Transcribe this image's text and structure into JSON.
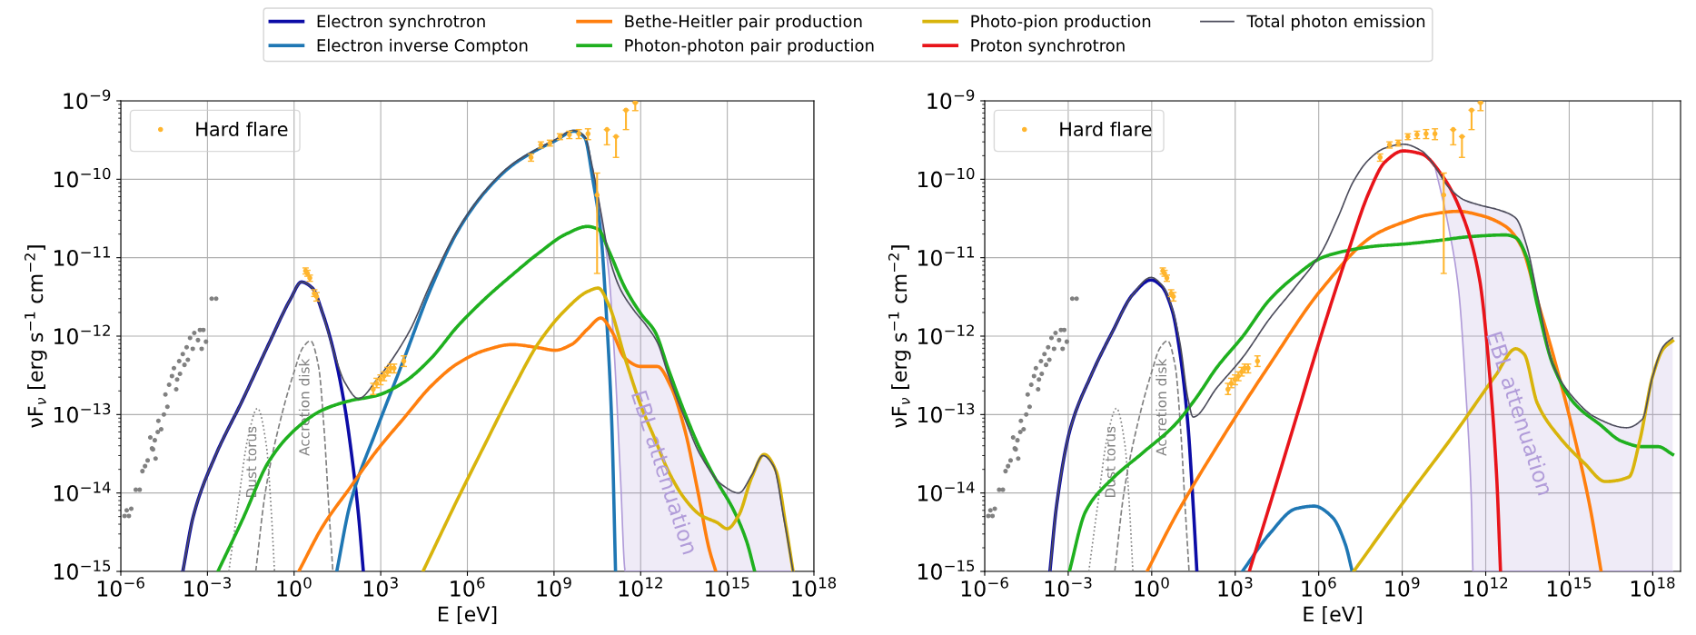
{
  "chart_data": [
    {
      "type": "line",
      "xlabel": "E [eV]",
      "ylabel": "νF$_{ν}$ [erg s$^{−1}$ cm$^{−2}$]",
      "log": "xy",
      "grid": true,
      "legend": "top",
      "xlim": [
        1e-06,
        1e+18
      ],
      "ylim": [
        1e-15,
        1e-09
      ],
      "xticks": [
        {
          "value": 1e-06,
          "label": "10$^{−6}$"
        },
        {
          "value": 0.001,
          "label": "10$^{−3}$"
        },
        {
          "value": 1,
          "label": "10$^{0}$"
        },
        {
          "value": 1000.0,
          "label": "10$^{3}$"
        },
        {
          "value": 1000000.0,
          "label": "10$^{6}$"
        },
        {
          "value": 1000000000.0,
          "label": "10$^{9}$"
        },
        {
          "value": 1000000000000.0,
          "label": "10$^{12}$"
        },
        {
          "value": 1000000000000000.0,
          "label": "10$^{15}$"
        },
        {
          "value": 1e+18,
          "label": "10$^{18}$"
        }
      ],
      "yticks": [
        {
          "value": 1e-15,
          "label": "10$^{−15}$"
        },
        {
          "value": 1e-14,
          "label": "10$^{−14}$"
        },
        {
          "value": 1e-13,
          "label": "10$^{−13}$"
        },
        {
          "value": 1e-12,
          "label": "10$^{−12}$"
        },
        {
          "value": 1e-11,
          "label": "10$^{−11}$"
        },
        {
          "value": 1e-10,
          "label": "10$^{−10}$"
        },
        {
          "value": 1e-09,
          "label": "10$^{−9}$"
        }
      ],
      "series": [
        {
          "type": "scatter",
          "marker": "circle",
          "color": "#808080",
          "x": [
            1.35e-06,
            1.6e-06,
            2.3e-06,
            1.9e-06,
            3.3e-06,
            4.5e-06,
            5.6e-06,
            8.5e-06,
            6.9e-06,
            1.3e-05,
            1.6e-05,
            1.05e-05,
            1.5e-05,
            1.2e-05,
            1.9e-05,
            2e-05,
            2.5e-05,
            3.1e-05,
            4.1e-05,
            3.5e-05,
            4.7e-05,
            5.9e-05,
            6.9e-05,
            8.9e-05,
            8.3e-05,
            0.000112,
            0.000105,
            0.00014,
            0.00016,
            0.00019,
            0.00021,
            0.00025,
            0.00031,
            0.00035,
            0.00047,
            0.00055,
            0.00072,
            0.00063,
            0.00089,
            0.0014,
            0.002
          ],
          "values": [
            5.1e-15,
            6e-15,
            6.3e-15,
            5.1e-15,
            1.1e-14,
            1.1e-14,
            1.9e-14,
            2.6e-14,
            2.2e-14,
            3.6e-14,
            2.75e-14,
            5.1e-14,
            4.7e-14,
            3.7e-14,
            6e-14,
            8.3e-14,
            6.5e-14,
            1e-13,
            1.26e-13,
            1.8e-13,
            2.4e-13,
            3.1e-13,
            3.9e-13,
            2.8e-13,
            2.1e-13,
            3.3e-13,
            4.8e-13,
            5.9e-13,
            4.3e-13,
            7.2e-13,
            5e-13,
            9.5e-13,
            6.9e-13,
            1.1e-12,
            8.9e-13,
            1.2e-12,
            1.2e-12,
            6.9e-13,
            8.5e-13,
            3e-12,
            3e-12
          ]
        },
        {
          "type": "line",
          "line_style": "dotted",
          "name": "Dust torus",
          "color": "#808080",
          "x": [
            0.0055,
            0.011,
            0.025,
            0.054,
            0.11,
            0.16,
            0.21
          ],
          "values": [
            1e-15,
            6.3e-15,
            5e-14,
            1.2e-13,
            4e-14,
            6.3e-15,
            1e-15
          ]
        },
        {
          "type": "line",
          "line_style": "dashed",
          "name": "Accretion disk",
          "color": "#808080",
          "x": [
            0.047,
            0.1,
            0.32,
            1,
            2.0,
            3.7,
            7.1,
            11,
            16,
            22
          ],
          "values": [
            1e-15,
            1e-14,
            7.9e-14,
            3.5e-13,
            7.1e-13,
            8.7e-13,
            4e-13,
            6.3e-14,
            6.3e-15,
            1e-15
          ]
        },
        {
          "type": "line",
          "name": "EBL attenuation",
          "color": "#b19cd9",
          "x": [
            22000000000.0,
            42000000000.0,
            79000000000.0,
            126000000000.0,
            200000000000.0,
            295000000000.0,
            1000000000000.0,
            10000000000000.0,
            100000000000000.0,
            1000000000000000.0,
            1e+16,
            1.9e+17
          ],
          "values": [
            1.35e-10,
            3.5e-11,
            6.3e-12,
            5e-13,
            1.6e-14,
            1e-15,
            1e-15,
            1e-15,
            1e-15,
            1e-15,
            1e-15,
            1e-15
          ]
        },
        {
          "type": "line",
          "name": "Electron synchrotron",
          "color": "#0c0ca6",
          "x": [
            0.00014,
            0.00033,
            0.0019,
            0.016,
            0.14,
            0.76,
            1.8,
            4.3,
            10,
            24,
            56,
            110,
            170,
            250
          ],
          "values": [
            1e-15,
            5.2e-15,
            3e-14,
            1.5e-13,
            8.3e-13,
            3e-12,
            4.9e-12,
            4.1e-12,
            1.9e-12,
            6.2e-13,
            1.3e-13,
            2.2e-14,
            5.2e-15,
            1e-15
          ]
        },
        {
          "type": "line",
          "name": "Electron inverse Compton",
          "color": "#1f77b4",
          "x": [
            30,
            87,
            740,
            6500,
            55000.0,
            470000.0,
            4100000.0,
            35000000.0,
            300000000.0,
            1100000000.0,
            4900000000.0,
            11500000000.0,
            22000000000.0,
            42000000000.0,
            65000000000.0,
            100000000000.0,
            135000000000.0
          ],
          "values": [
            1e-15,
            7.2e-15,
            6.6e-14,
            5.2e-13,
            4.1e-12,
            2.2e-11,
            6.9e-11,
            1.5e-10,
            2.45e-10,
            3.1e-10,
            4.1e-10,
            3.4e-10,
            1e-10,
            2e-11,
            1.9e-12,
            7.8e-14,
            1e-15
          ]
        },
        {
          "type": "line",
          "name": "Bethe-Heitler pair production",
          "color": "#ff7f0e",
          "x": [
            1.45,
            10,
            87,
            740,
            6500,
            55000.0,
            470000.0,
            4100000.0,
            35000000.0,
            300000000.0,
            1100000000.0,
            4000000000.0,
            14500000000.0,
            42000000000.0,
            100000000000.0,
            290000000000.0,
            1050000000000.0,
            3800000000000.0,
            11000000000000.0,
            33000000000000.0,
            98000000000000.0,
            230000000000000.0,
            400000000000000.0
          ],
          "values": [
            1e-15,
            3.8e-15,
            1.17e-14,
            3.5e-14,
            9.1e-14,
            2.3e-13,
            4.5e-13,
            6.6e-13,
            7.8e-13,
            7.1e-13,
            6.6e-13,
            7.8e-13,
            1.23e-12,
            1.7e-12,
            1.15e-12,
            5.2e-13,
            4.1e-13,
            4.1e-13,
            2.3e-13,
            6.6e-14,
            1e-14,
            2e-15,
            1e-15
          ]
        },
        {
          "type": "line",
          "name": "Photon-photon pair production",
          "color": "#1fb01f",
          "x": [
            0.0023,
            0.016,
            0.14,
            1.17,
            10,
            87,
            740,
            6500,
            55000.0,
            470000.0,
            4100000.0,
            35000000.0,
            300000000.0,
            2600000000.0,
            14500000000.0,
            34000000000.0,
            79000000000.0,
            290000000000.0,
            1050000000000.0,
            3100000000000.0,
            9100000000000.0,
            33000000000000.0,
            120000000000000.0,
            440000000000000.0,
            1600000000000000.0,
            4700000000000000.0,
            8900000000000000.0
          ],
          "values": [
            1e-15,
            4.5e-15,
            2.6e-14,
            6.6e-14,
            1.15e-13,
            1.5e-13,
            1.75e-13,
            2.6e-13,
            5.2e-13,
            1.35e-12,
            3e-12,
            6e-12,
            1.15e-11,
            2e-11,
            2.5e-11,
            2.3e-11,
            1.23e-11,
            4.1e-12,
            1.9e-12,
            1.15e-12,
            3.8e-13,
            1.07e-13,
            3.5e-14,
            1.4e-14,
            6.2e-15,
            2.4e-15,
            1e-15
          ]
        },
        {
          "type": "line",
          "name": "Photo-pion production",
          "color": "#d8b40c",
          "x": [
            29000.0,
            470000.0,
            4100000.0,
            35000000.0,
            300000000.0,
            2600000000.0,
            14500000000.0,
            34000000000.0,
            79000000000.0,
            290000000000.0,
            1050000000000.0,
            3100000000000.0,
            9100000000000.0,
            33000000000000.0,
            120000000000000.0,
            440000000000000.0,
            1000000000000000.0,
            2500000000000000.0,
            7100000000000000.0,
            1.9e+16,
            4.9e+16,
            1.07e+17,
            1.9e+17
          ],
          "values": [
            1e-15,
            8.5e-15,
            4.2e-14,
            2e-13,
            8.3e-13,
            2.2e-12,
            3.7e-12,
            4.1e-12,
            2.5e-12,
            5.2e-13,
            1.26e-13,
            4.9e-14,
            1.9e-14,
            8.5e-15,
            5.2e-15,
            4.2e-15,
            3.5e-15,
            5.2e-15,
            1.6e-14,
            3.1e-14,
            1.9e-14,
            3.8e-15,
            1e-15
          ]
        },
        {
          "type": "line",
          "name": "Total photon emission",
          "color": "#4d4d5c",
          "x": [
            0.00014,
            0.00033,
            0.0019,
            0.016,
            0.14,
            0.76,
            1.8,
            4.3,
            10,
            24,
            56,
            170,
            740,
            9800,
            55000.0,
            470000.0,
            4100000.0,
            35000000.0,
            300000000.0,
            1100000000.0,
            4900000000.0,
            11500000000.0,
            22000000000.0,
            42000000000.0,
            79000000000.0,
            190000000000.0,
            550000000000.0,
            1600000000000.0,
            3800000000000.0,
            9100000000000.0,
            33000000000000.0,
            120000000000000.0,
            680000000000000.0,
            2500000000000000.0,
            7100000000000000.0,
            1.7e+16,
            4e+16,
            9.3e+16,
            1.9e+17
          ],
          "values": [
            1e-15,
            5.2e-15,
            3e-14,
            1.5e-13,
            8.3e-13,
            3e-12,
            4.9e-12,
            4.1e-12,
            1.9e-12,
            6.2e-13,
            2.6e-13,
            1.6e-13,
            2.8e-13,
            1.15e-12,
            4.8e-12,
            2.3e-11,
            7.1e-11,
            1.55e-10,
            2.5e-10,
            3.2e-10,
            4.2e-10,
            3.5e-10,
            1.35e-10,
            3.8e-11,
            1.07e-11,
            4.1e-12,
            2.2e-12,
            1.35e-12,
            8.3e-13,
            3.2e-13,
            9.1e-14,
            3e-14,
            1.26e-14,
            1e-14,
            1.7e-14,
            3e-14,
            2.2e-14,
            4.5e-15,
            1e-15
          ]
        },
        {
          "type": "scatter",
          "marker": "circle",
          "name": "Hard flare",
          "color": "#ffb52e",
          "x": [
            2.5,
            2.9,
            3.5,
            5.0,
            6.0,
            550,
            720,
            980,
            1300,
            1700,
            2200,
            2900,
            6300,
            160000000.0,
            350000000.0,
            720000000.0,
            1600000000.0,
            3400000000.0,
            7200000000.0,
            15000000000.0,
            31000000000.0,
            68000000000.0,
            140000000000.0,
            310000000000.0,
            650000000000.0
          ],
          "values": [
            6.8e-12,
            6.3e-12,
            5.5e-12,
            3.5e-12,
            3.2e-12,
            2.1e-13,
            2.5e-13,
            2.8e-13,
            3.1e-13,
            3.5e-13,
            3.9e-13,
            3.9e-13,
            4.8e-13,
            1.9e-10,
            2.75e-10,
            2.9e-10,
            3.5e-10,
            3.7e-10,
            3.8e-10,
            3.8e-10,
            6.3e-11,
            4.3e-10,
            3.5e-10,
            7.6e-10,
            9.5e-10
          ],
          "errors": [
            [
              6.2e-12,
              7.4e-12
            ],
            [
              5.8e-12,
              6.9e-12
            ],
            [
              5e-12,
              6e-12
            ],
            [
              3.2e-12,
              3.9e-12
            ],
            [
              2.8e-12,
              3.6e-12
            ],
            [
              1.8e-13,
              2.5e-13
            ],
            [
              2.2e-13,
              2.9e-13
            ],
            [
              2.4e-13,
              3.2e-13
            ],
            [
              2.7e-13,
              3.5e-13
            ],
            [
              3.1e-13,
              4e-13
            ],
            [
              3.4e-13,
              4.4e-13
            ],
            [
              3.4e-13,
              4.4e-13
            ],
            [
              4.1e-13,
              5.6e-13
            ],
            [
              1.7e-10,
              2.1e-10
            ],
            [
              2.5e-10,
              3e-10
            ],
            [
              2.65e-10,
              3.15e-10
            ],
            [
              3.2e-10,
              3.8e-10
            ],
            [
              3.3e-10,
              4.1e-10
            ],
            [
              3.3e-10,
              4.3e-10
            ],
            [
              3.2e-10,
              4.4e-10
            ],
            [
              6.3e-12,
              1.2e-10
            ],
            [
              2.75e-10,
              4.3e-10
            ],
            [
              1.9e-10,
              3.5e-10
            ],
            [
              4.3e-10,
              7.6e-10
            ],
            [
              7.5e-10,
              9.5e-10
            ]
          ]
        }
      ]
    },
    {
      "type": "line",
      "xlabel": "E [eV]",
      "ylabel": "νF$_{ν}$ [erg s$^{−1}$ cm$^{−2}$]",
      "log": "xy",
      "grid": true,
      "legend": "top",
      "xlim": [
        1e-06,
        1e+19
      ],
      "ylim": [
        1e-15,
        1e-09
      ],
      "xticks": [
        {
          "value": 1e-06,
          "label": "10$^{−6}$"
        },
        {
          "value": 0.001,
          "label": "10$^{−3}$"
        },
        {
          "value": 1,
          "label": "10$^{0}$"
        },
        {
          "value": 1000.0,
          "label": "10$^{3}$"
        },
        {
          "value": 1000000.0,
          "label": "10$^{6}$"
        },
        {
          "value": 1000000000.0,
          "label": "10$^{9}$"
        },
        {
          "value": 1000000000000.0,
          "label": "10$^{12}$"
        },
        {
          "value": 1000000000000000.0,
          "label": "10$^{15}$"
        },
        {
          "value": 1e+18,
          "label": "10$^{18}$"
        }
      ],
      "yticks": [
        {
          "value": 1e-15,
          "label": "10$^{−15}$"
        },
        {
          "value": 1e-14,
          "label": "10$^{−14}$"
        },
        {
          "value": 1e-13,
          "label": "10$^{−13}$"
        },
        {
          "value": 1e-12,
          "label": "10$^{−12}$"
        },
        {
          "value": 1e-11,
          "label": "10$^{−11}$"
        },
        {
          "value": 1e-10,
          "label": "10$^{−10}$"
        },
        {
          "value": 1e-09,
          "label": "10$^{−9}$"
        }
      ],
      "series": [
        {
          "type": "scatter",
          "marker": "circle",
          "color": "#808080",
          "x": [
            1.35e-06,
            1.6e-06,
            2.3e-06,
            1.9e-06,
            3.3e-06,
            4.5e-06,
            5.6e-06,
            8.5e-06,
            6.9e-06,
            1.3e-05,
            1.6e-05,
            1.05e-05,
            1.5e-05,
            1.2e-05,
            1.9e-05,
            2e-05,
            2.5e-05,
            3.1e-05,
            4.1e-05,
            3.5e-05,
            4.7e-05,
            5.9e-05,
            6.9e-05,
            8.9e-05,
            8.3e-05,
            0.000112,
            0.000105,
            0.00014,
            0.00016,
            0.00019,
            0.00021,
            0.00025,
            0.00031,
            0.00035,
            0.00047,
            0.00055,
            0.00072,
            0.00063,
            0.00089,
            0.0014,
            0.002
          ],
          "values": [
            5.1e-15,
            6e-15,
            6.3e-15,
            5.1e-15,
            1.1e-14,
            1.1e-14,
            1.9e-14,
            2.6e-14,
            2.2e-14,
            3.6e-14,
            2.75e-14,
            5.1e-14,
            4.7e-14,
            3.7e-14,
            6e-14,
            8.3e-14,
            6.5e-14,
            1e-13,
            1.26e-13,
            1.8e-13,
            2.4e-13,
            3.1e-13,
            3.9e-13,
            2.8e-13,
            2.1e-13,
            3.3e-13,
            4.8e-13,
            5.9e-13,
            4.3e-13,
            7.2e-13,
            5e-13,
            9.5e-13,
            6.9e-13,
            1.1e-12,
            8.9e-13,
            1.2e-12,
            1.2e-12,
            6.9e-13,
            8.5e-13,
            3e-12,
            3e-12
          ]
        },
        {
          "type": "line",
          "line_style": "dotted",
          "name": "Dust torus",
          "color": "#808080",
          "x": [
            0.0055,
            0.011,
            0.025,
            0.054,
            0.11,
            0.16,
            0.21
          ],
          "values": [
            1e-15,
            6.3e-15,
            5e-14,
            1.2e-13,
            4e-14,
            6.3e-15,
            1e-15
          ]
        },
        {
          "type": "line",
          "line_style": "dashed",
          "name": "Accretion disk",
          "color": "#808080",
          "x": [
            0.047,
            0.1,
            0.32,
            1,
            2.0,
            3.7,
            7.1,
            11,
            16,
            22
          ],
          "values": [
            1e-15,
            1e-14,
            7.9e-14,
            3.5e-13,
            7.1e-13,
            8.7e-13,
            4e-13,
            6.3e-14,
            6.3e-15,
            1e-15
          ]
        },
        {
          "type": "line",
          "name": "EBL attenuation",
          "color": "#b19cd9",
          "x": [
            15000000000.0,
            44000000000.0,
            105000000000.0,
            200000000000.0,
            310000000000.0,
            350000000000.0,
            1000000000000.0,
            10000000000000.0,
            100000000000000.0,
            1000000000000000.0,
            1e+16,
            1e+17,
            1e+18,
            5.2e+18
          ],
          "values": [
            1.45e-10,
            2.7e-11,
            4e-12,
            1.6e-13,
            6.8e-15,
            1e-15,
            1e-15,
            1e-15,
            1e-15,
            1e-15,
            1e-15,
            1e-15,
            1e-15,
            1e-15
          ]
        },
        {
          "type": "line",
          "name": "Electron synchrotron",
          "color": "#0c0ca6",
          "x": [
            0.00022,
            0.00038,
            0.00115,
            0.0065,
            0.037,
            0.21,
            0.95,
            2.3,
            5.5,
            10.5,
            20,
            31,
            42
          ],
          "values": [
            1e-15,
            6.8e-15,
            6.3e-14,
            3.1e-13,
            1.1e-12,
            3.4e-12,
            5.2e-12,
            4.3e-12,
            2.1e-12,
            5.9e-13,
            7.4e-14,
            6.8e-15,
            1e-15
          ]
        },
        {
          "type": "line",
          "name": "Electron inverse Compton",
          "color": "#1f77b4",
          "x": [
            1800,
            17000.0,
            150000.0,
            680000.0,
            3100000.0,
            9100000.0,
            16000000.0
          ],
          "values": [
            1e-15,
            3e-15,
            6.3e-15,
            6.8e-15,
            4.9e-15,
            2.2e-15,
            1e-15
          ]
        },
        {
          "type": "line",
          "name": "Bethe-Heitler pair production",
          "color": "#ff7f0e",
          "x": [
            0.68,
            6.8,
            220,
            17000.0,
            1300000.0,
            100000000.0,
            1350000000.0,
            7800000000.0,
            105000000000.0,
            590000000000.0,
            5200000000000.0,
            19000000000000.0,
            71000000000000.0,
            260000000000000.0,
            1500000000000000.0,
            5500000000000000.0,
            1.4e+16
          ],
          "values": [
            1e-15,
            4.9e-15,
            3.9e-14,
            4.3e-13,
            4e-12,
            1.95e-11,
            2.9e-11,
            3.5e-11,
            3.9e-11,
            3.5e-11,
            2.5e-11,
            1.4e-11,
            2.9e-12,
            5.9e-13,
            5.4e-14,
            6.8e-15,
            1e-15
          ]
        },
        {
          "type": "line",
          "name": "Photon-photon pair production",
          "color": "#1fb01f",
          "x": [
            0.0011,
            0.0042,
            0.037,
            0.5,
            6.8,
            38,
            220,
            1900,
            17000.0,
            150000.0,
            1300000.0,
            7400000.0,
            100000000.0,
            1350000000.0,
            18000000000.0,
            250000000000.0,
            5200000000000.0,
            12000000000000.0,
            30000000000000.0,
            71000000000000.0,
            260000000000000.0,
            1500000000000000.0,
            1.3e+16,
            7.4e+16,
            4.2e+17,
            1.55e+18,
            5.2e+18
          ],
          "values": [
            1e-15,
            5.8e-15,
            1.5e-14,
            3.3e-14,
            7.4e-14,
            1.6e-13,
            4e-13,
            1e-12,
            2.9e-12,
            5.9e-12,
            1e-11,
            1.2e-11,
            1.4e-11,
            1.5e-11,
            1.65e-11,
            1.85e-11,
            1.95e-11,
            1.8e-11,
            1e-11,
            2.5e-12,
            4.3e-13,
            1.4e-13,
            7.4e-14,
            4.6e-14,
            3.9e-14,
            3.9e-14,
            3.1e-14
          ]
        },
        {
          "type": "line",
          "name": "Photo-pion production",
          "color": "#d8b40c",
          "x": [
            18000000.0,
            870000000.0,
            68000000000.0,
            2200000000000.0,
            12000000000000.0,
            24000000000000.0,
            71000000000000.0,
            400000000000000.0,
            3500000000000000.0,
            2e+16,
            1.4e+17,
            3.4e+17,
            1e+18,
            2.4e+18,
            5.2e+18
          ],
          "values": [
            1e-15,
            6.8e-15,
            5.4e-14,
            3.1e-13,
            6.9e-13,
            5.9e-13,
            1.4e-13,
            5.4e-14,
            2.4e-14,
            1.4e-14,
            1.6e-14,
            4.6e-14,
            3.1e-13,
            6.9e-13,
            8.7e-13
          ]
        },
        {
          "type": "line",
          "name": "Proton synchrotron",
          "color": "#e8141a",
          "x": [
            3200,
            17000.0,
            150000.0,
            1300000.0,
            11500000.0,
            65000000.0,
            240000000.0,
            1100000000.0,
            5000000000.0,
            28000000000.0,
            160000000000.0,
            590000000000.0,
            1400000000000.0,
            2500000000000.0,
            3400000000000.0
          ],
          "values": [
            1e-15,
            6.8e-15,
            8.7e-14,
            1.1e-12,
            1.2e-11,
            6.9e-11,
            1.66e-10,
            2.3e-10,
            2.1e-10,
            1.1e-10,
            3.2e-11,
            5.5e-12,
            3.1e-13,
            1.5e-14,
            1e-15
          ]
        },
        {
          "type": "line",
          "name": "Total photon emission",
          "color": "#4d4d5c",
          "x": [
            0.00022,
            0.00038,
            0.00115,
            0.0065,
            0.037,
            0.21,
            0.95,
            2.3,
            5.5,
            10.5,
            20,
            31,
            220,
            1900,
            17000.0,
            150000.0,
            1300000.0,
            4800000.0,
            18000000.0,
            65000000.0,
            240000000.0,
            1100000000.0,
            5000000000.0,
            15000000000.0,
            44000000000.0,
            160000000000.0,
            590000000000.0,
            3400000000000.0,
            12000000000000.0,
            30000000000000.0,
            71000000000000.0,
            260000000000000.0,
            1500000000000000.0,
            8300000000000000.0,
            1.15e+17,
            4.2e+17,
            1e+18,
            2.4e+18,
            5.2e+18
          ],
          "values": [
            1e-15,
            6.8e-15,
            6.3e-14,
            3.1e-13,
            1.1e-12,
            3.4e-12,
            5.6e-12,
            4.5e-12,
            2.2e-12,
            7.9e-13,
            1.6e-13,
            9.3e-14,
            2.2e-13,
            5.4e-13,
            1.66e-12,
            4.3e-12,
            1.2e-11,
            3.2e-11,
            9.5e-11,
            1.8e-10,
            2.5e-10,
            2.8e-10,
            2.3e-10,
            1.45e-10,
            8.1e-11,
            5.5e-11,
            4.7e-11,
            4e-11,
            3.2e-11,
            1.4e-11,
            3.4e-12,
            4.3e-13,
            1.6e-13,
            9.3e-14,
            6.8e-14,
            8.7e-14,
            3.1e-13,
            7.4e-13,
            9.5e-13
          ]
        },
        {
          "type": "scatter",
          "marker": "circle",
          "name": "Hard flare",
          "color": "#ffb52e",
          "x": [
            2.5,
            2.9,
            3.5,
            5.0,
            6.0,
            550,
            720,
            980,
            1300,
            1700,
            2200,
            2900,
            6300,
            160000000.0,
            350000000.0,
            720000000.0,
            1600000000.0,
            3400000000.0,
            7200000000.0,
            15000000000.0,
            31000000000.0,
            68000000000.0,
            140000000000.0,
            310000000000.0,
            650000000000.0
          ],
          "values": [
            6.8e-12,
            6.3e-12,
            5.5e-12,
            3.5e-12,
            3.2e-12,
            2.1e-13,
            2.5e-13,
            2.8e-13,
            3.1e-13,
            3.5e-13,
            3.9e-13,
            3.9e-13,
            4.8e-13,
            1.9e-10,
            2.75e-10,
            2.9e-10,
            3.5e-10,
            3.7e-10,
            3.8e-10,
            3.8e-10,
            6.3e-11,
            4.3e-10,
            3.5e-10,
            7.6e-10,
            9.5e-10
          ],
          "errors": [
            [
              6.2e-12,
              7.4e-12
            ],
            [
              5.8e-12,
              6.9e-12
            ],
            [
              5e-12,
              6e-12
            ],
            [
              3.2e-12,
              3.9e-12
            ],
            [
              2.8e-12,
              3.6e-12
            ],
            [
              1.8e-13,
              2.5e-13
            ],
            [
              2.2e-13,
              2.9e-13
            ],
            [
              2.4e-13,
              3.2e-13
            ],
            [
              2.7e-13,
              3.5e-13
            ],
            [
              3.1e-13,
              4e-13
            ],
            [
              3.4e-13,
              4.4e-13
            ],
            [
              3.4e-13,
              4.4e-13
            ],
            [
              4.1e-13,
              5.6e-13
            ],
            [
              1.7e-10,
              2.1e-10
            ],
            [
              2.5e-10,
              3e-10
            ],
            [
              2.65e-10,
              3.15e-10
            ],
            [
              3.2e-10,
              3.8e-10
            ],
            [
              3.3e-10,
              4.1e-10
            ],
            [
              3.3e-10,
              4.3e-10
            ],
            [
              3.2e-10,
              4.4e-10
            ],
            [
              6.3e-12,
              1.2e-10
            ],
            [
              2.75e-10,
              4.3e-10
            ],
            [
              1.9e-10,
              3.5e-10
            ],
            [
              4.3e-10,
              7.6e-10
            ],
            [
              7.5e-10,
              9.5e-10
            ]
          ]
        }
      ]
    }
  ]
}
